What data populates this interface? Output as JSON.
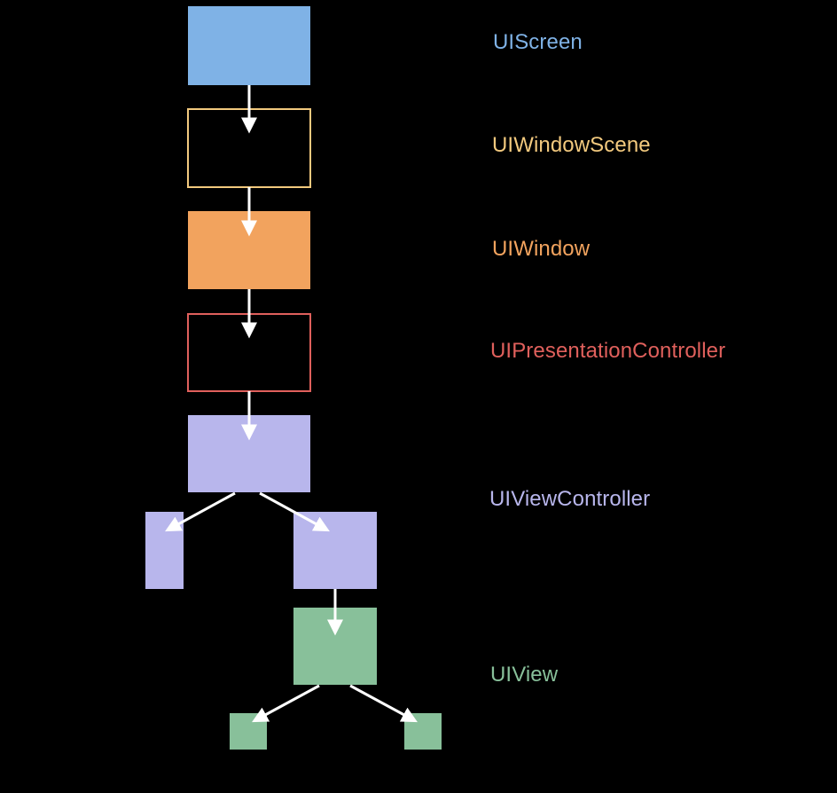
{
  "layers": [
    {
      "key": "screen",
      "label": "UIScreen",
      "color": "#7fb2e6"
    },
    {
      "key": "windowscene",
      "label": "UIWindowScene",
      "color": "#f2c97e"
    },
    {
      "key": "window",
      "label": "UIWindow",
      "color": "#f2a35e"
    },
    {
      "key": "presentation",
      "label": "UIPresentationController",
      "color": "#e0605c"
    },
    {
      "key": "viewcontroller",
      "label": "UIViewController",
      "color": "#b8b6ec"
    },
    {
      "key": "view",
      "label": "UIView",
      "color": "#88c09a"
    }
  ],
  "arrow_color": "#ffffff"
}
